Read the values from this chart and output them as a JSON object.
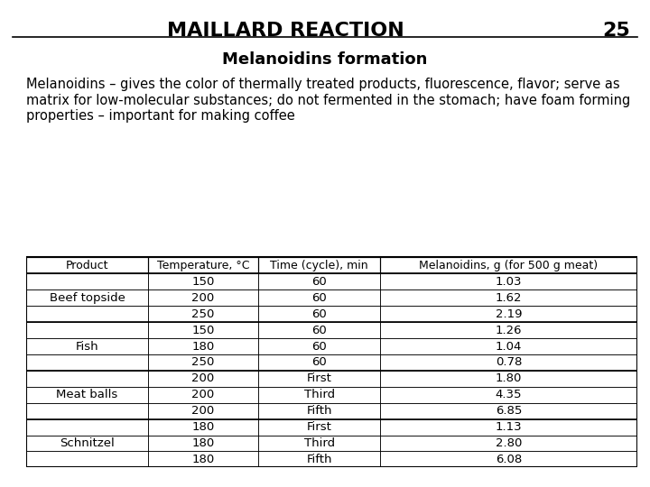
{
  "title": "MAILLARD REACTION",
  "page_number": "25",
  "subtitle": "Melanoidins formation",
  "description": "Melanoidins – gives the color of thermally treated products, fluorescence, flavor; serve as matrix for low-molecular substances; do not fermented in the stomach; have foam forming properties – important for making coffee",
  "table_headers": [
    "Product",
    "Temperature, °C",
    "Time (cycle), min",
    "Melanoidins, g (for 500 g meat)"
  ],
  "table_data": [
    [
      "",
      "150",
      "60",
      "1.03"
    ],
    [
      "Beef topside",
      "200",
      "60",
      "1.62"
    ],
    [
      "",
      "250",
      "60",
      "2.19"
    ],
    [
      "",
      "150",
      "60",
      "1.26"
    ],
    [
      "Fish",
      "180",
      "60",
      "1.04"
    ],
    [
      "",
      "250",
      "60",
      "0.78"
    ],
    [
      "",
      "200",
      "First",
      "1.80"
    ],
    [
      "Meat balls",
      "200",
      "Third",
      "4.35"
    ],
    [
      "",
      "200",
      "Fifth",
      "6.85"
    ],
    [
      "",
      "180",
      "First",
      "1.13"
    ],
    [
      "Schnitzel",
      "180",
      "Third",
      "2.80"
    ],
    [
      "",
      "180",
      "Fifth",
      "6.08"
    ]
  ],
  "group_rows": {
    "Beef topside": [
      0,
      1,
      2
    ],
    "Fish": [
      3,
      4,
      5
    ],
    "Meat balls": [
      6,
      7,
      8
    ],
    "Schnitzel": [
      9,
      10,
      11
    ]
  },
  "bg_color": "#ffffff",
  "title_fontsize": 16,
  "subtitle_fontsize": 13,
  "body_fontsize": 10.5,
  "table_fontsize": 9.5
}
